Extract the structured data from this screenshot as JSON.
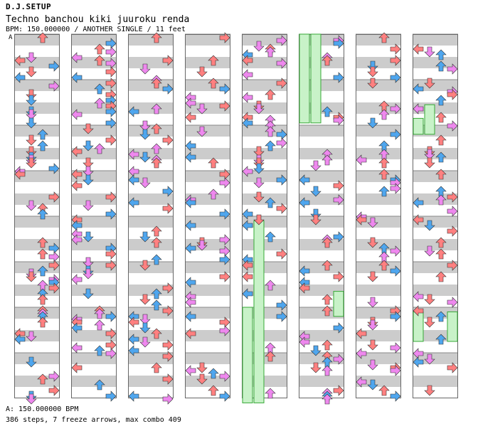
{
  "header": {
    "artist": "D.J.SETUP",
    "title": "Techno banchou kiki juuroku renda",
    "info": "BPM: 150.000000 / ANOTHER SINGLE / 11 feet"
  },
  "bpm_marker": "A",
  "footer": {
    "bpm": "A: 150.000000 BPM",
    "summary": "386 steps, 7 freeze arrows, max combo 409"
  },
  "chart": {
    "columns": 8,
    "measures_per_column": 8,
    "lanes": [
      "left",
      "down",
      "up",
      "right"
    ],
    "colors": {
      "quarter": "#ff8080",
      "eighth": "#4fa6ee",
      "sixteenth": "#ee88ee",
      "freeze_fill": "#c8f2c8",
      "freeze_edge": "#36a836",
      "gray_band": "#cccccc"
    },
    "freezes": [
      {
        "column": 6,
        "lane": 0,
        "start": 0.0,
        "end": 1.95
      },
      {
        "column": 6,
        "lane": 1,
        "start": 0.0,
        "end": 1.95
      },
      {
        "column": 5,
        "lane": 1,
        "start": 4.1,
        "end": 8.1
      },
      {
        "column": 5,
        "lane": 0,
        "start": 6.0,
        "end": 8.1
      },
      {
        "column": 6,
        "lane": 3,
        "start": 5.65,
        "end": 6.2
      },
      {
        "column": 8,
        "lane": 1,
        "start": 1.55,
        "end": 2.2
      },
      {
        "column": 8,
        "lane": 0,
        "start": 1.85,
        "end": 2.2
      },
      {
        "column": 8,
        "lane": 0,
        "start": 6.1,
        "end": 6.75
      },
      {
        "column": 8,
        "lane": 3,
        "start": 6.1,
        "end": 6.75
      }
    ]
  }
}
